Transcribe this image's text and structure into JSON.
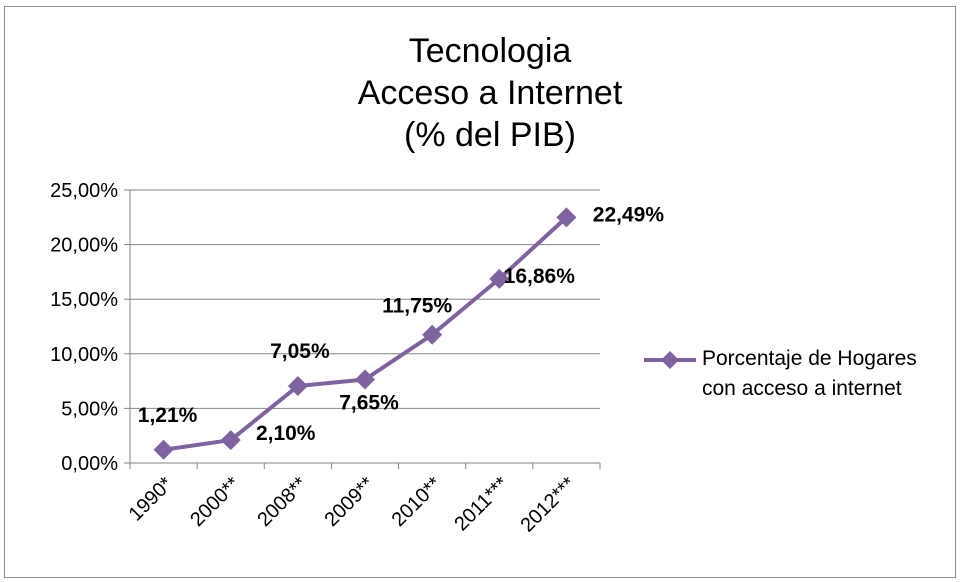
{
  "colors": {
    "series": "#7f63a1",
    "axis": "#868686",
    "grid": "#868686",
    "text": "#000000"
  },
  "chart_data": {
    "type": "line",
    "title_lines": [
      "Tecnologia",
      "Acceso a Internet",
      "(% del PIB)"
    ],
    "categories": [
      "1990*",
      "2000**",
      "2008**",
      "2009**",
      "2010**",
      "2011***",
      "2012***"
    ],
    "series": [
      {
        "name": "Porcentaje de Hogares\ncon acceso a internet",
        "values": [
          1.21,
          2.1,
          7.05,
          7.65,
          11.75,
          16.86,
          22.49
        ],
        "labels": [
          "1,21%",
          "2,10%",
          "7,05%",
          "7,65%",
          "11,75%",
          "16,86%",
          "22,49%"
        ],
        "marker": "diamond"
      }
    ],
    "yticks": [
      "0,00%",
      "5,00%",
      "10,00%",
      "15,00%",
      "20,00%",
      "25,00%"
    ],
    "ylim": [
      0,
      25
    ],
    "grid": true,
    "legend_position": "right"
  }
}
